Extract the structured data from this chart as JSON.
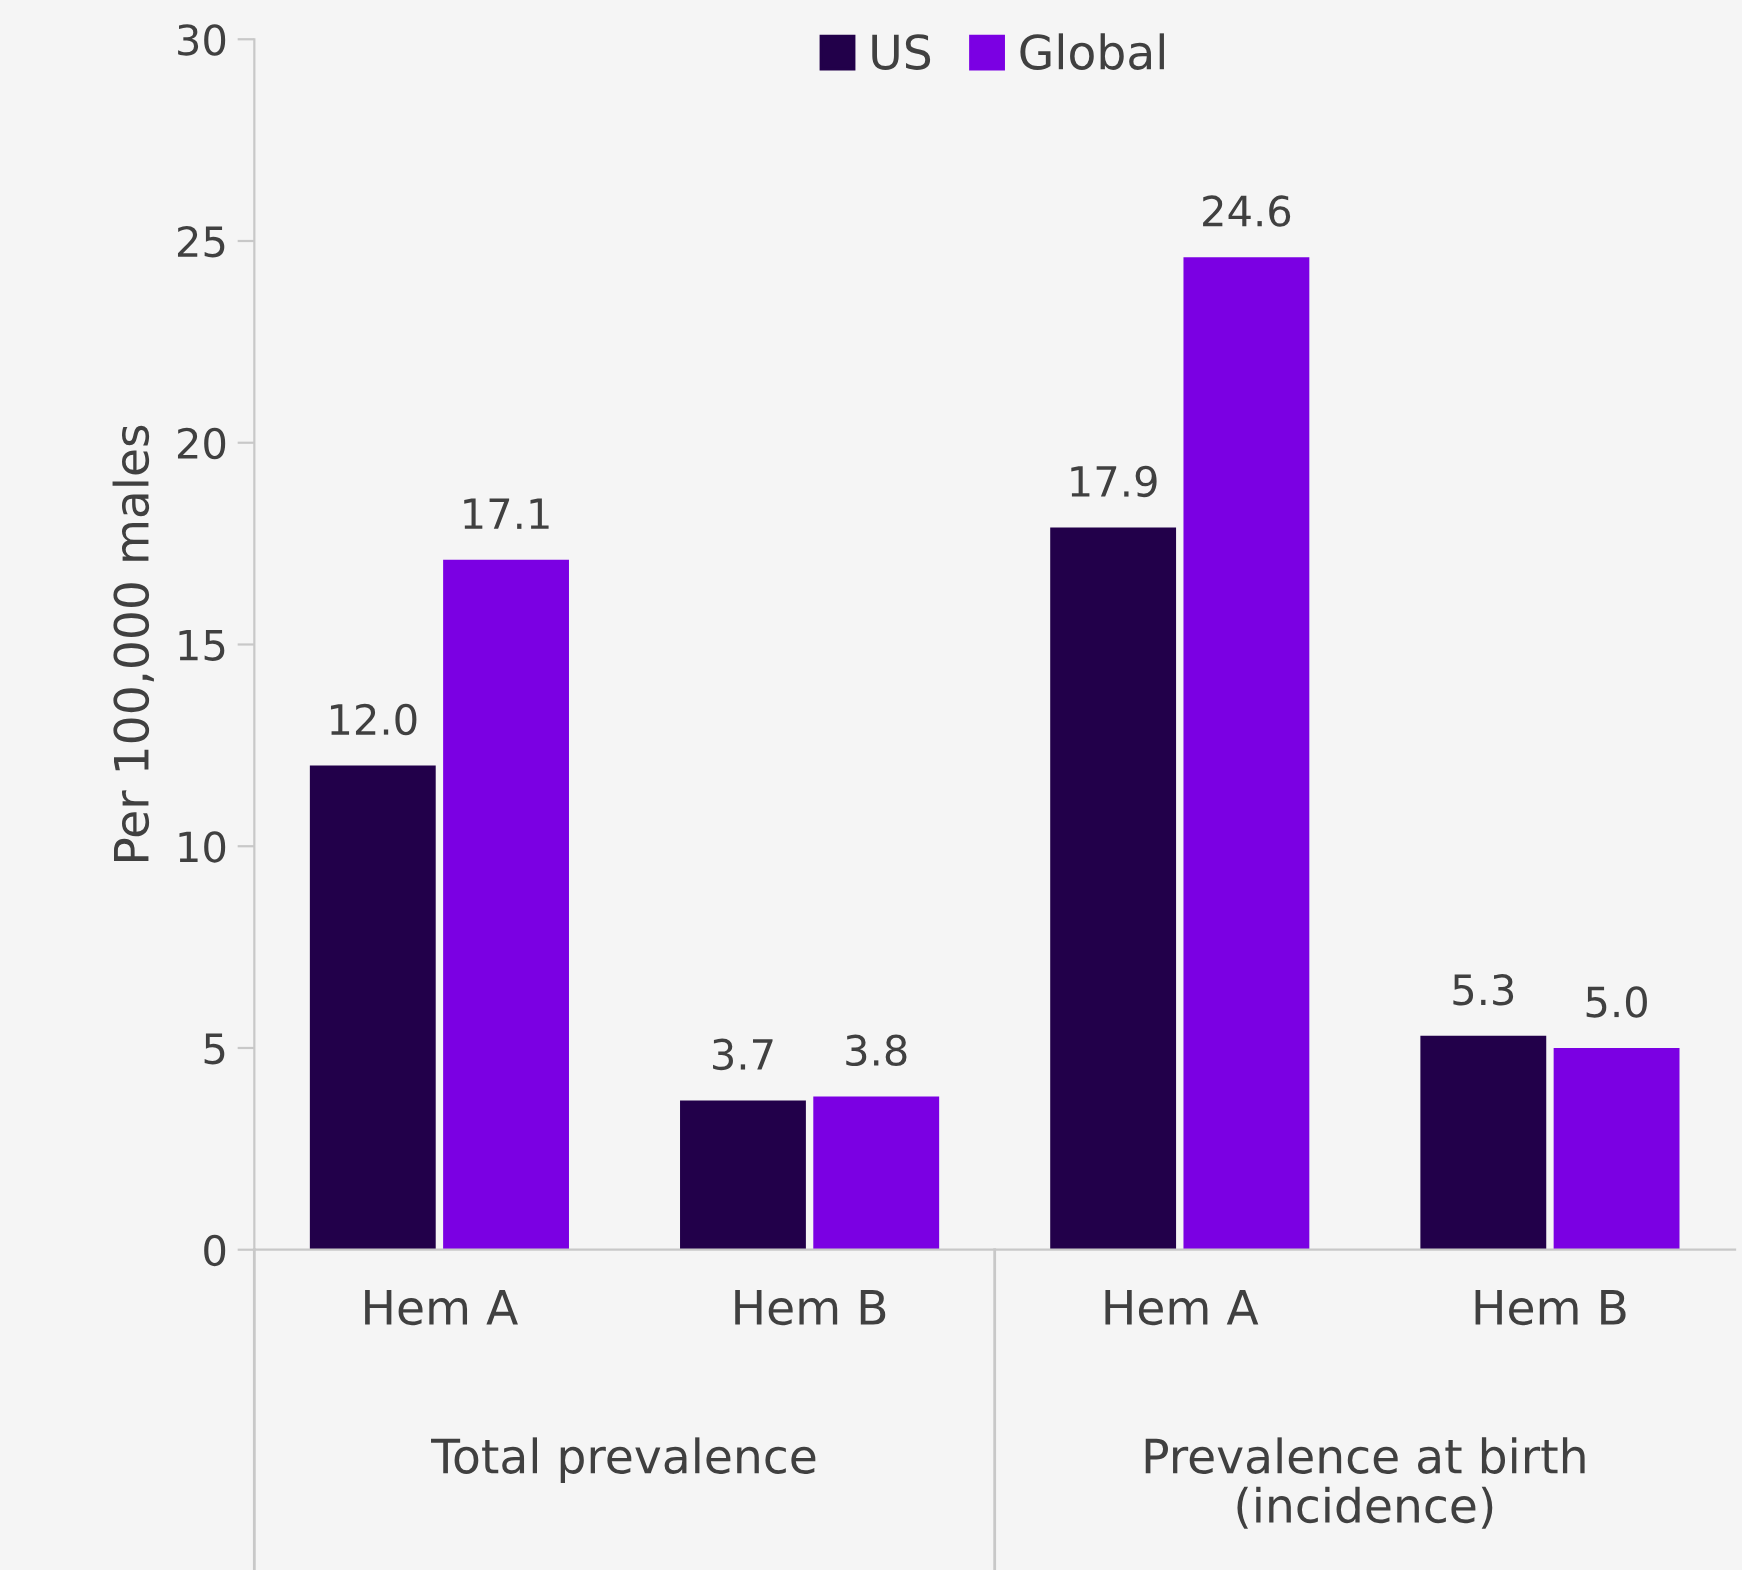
{
  "chart_data": {
    "type": "bar",
    "ylabel": "Per 100,000 males",
    "categories": [
      "Hem A",
      "Hem B",
      "Hem A",
      "Hem B"
    ],
    "series": [
      {
        "name": "US",
        "color": "#22004a",
        "values": [
          12.0,
          3.7,
          17.9,
          5.3
        ],
        "value_labels": [
          "12.0",
          "3.7",
          "17.9",
          "5.3"
        ]
      },
      {
        "name": "Global",
        "color": "#7b00e3",
        "values": [
          17.1,
          3.8,
          24.6,
          5.0
        ],
        "value_labels": [
          "17.1",
          "3.8",
          "24.6",
          "5.0"
        ]
      }
    ],
    "annotations": [
      "Total prevalence",
      "Prevalence at birth\n(incidence)"
    ],
    "ylim": [
      0,
      30
    ],
    "yticks": [
      0,
      5,
      10,
      15,
      20,
      25,
      30
    ],
    "grid": false,
    "legend": "top"
  }
}
